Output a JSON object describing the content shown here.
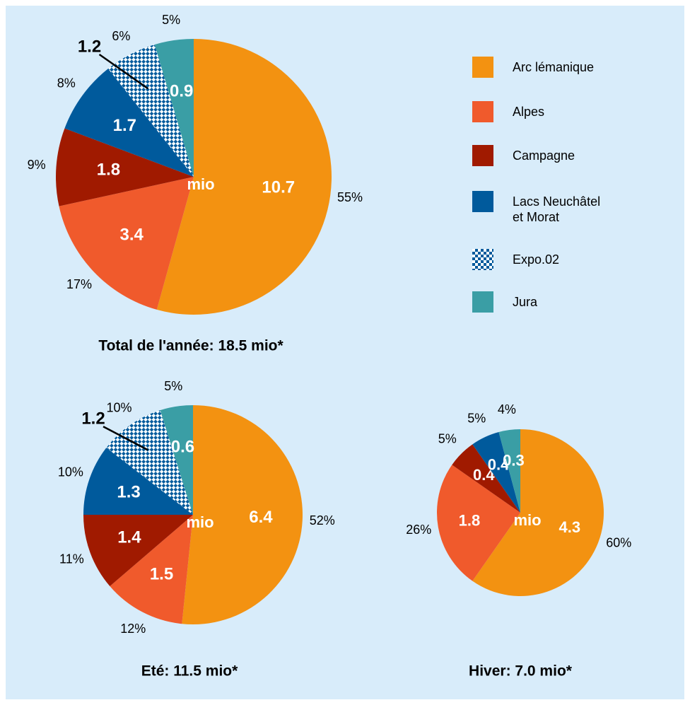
{
  "chart_data": [
    {
      "type": "pie",
      "title": "Total de l'année: 18.5 mio*",
      "center_label": "mio",
      "categories": [
        "Arc lémanique",
        "Alpes",
        "Campagne",
        "Lacs Neuchâtel\net Morat",
        "Expo.02",
        "Jura"
      ],
      "values": [
        10.7,
        3.4,
        1.8,
        1.7,
        1.2,
        0.9
      ],
      "percent_labels": [
        "55%",
        "17%",
        "9%",
        "8%",
        "6%",
        "5%"
      ],
      "colors": [
        "#f39211",
        "#f05a2c",
        "#a01a00",
        "#005a9c",
        "#005a9c",
        "#3a9ea5"
      ],
      "patterned": [
        false,
        false,
        false,
        false,
        true,
        false
      ]
    },
    {
      "type": "pie",
      "title": "Eté: 11.5 mio*",
      "center_label": "mio",
      "categories": [
        "Arc lémanique",
        "Alpes",
        "Campagne",
        "Lacs Neuchâtel\net Morat",
        "Expo.02",
        "Jura"
      ],
      "values": [
        6.4,
        1.5,
        1.4,
        1.3,
        1.2,
        0.6
      ],
      "percent_labels": [
        "52%",
        "12%",
        "11%",
        "10%",
        "10%",
        "5%"
      ],
      "colors": [
        "#f39211",
        "#f05a2c",
        "#a01a00",
        "#005a9c",
        "#005a9c",
        "#3a9ea5"
      ],
      "patterned": [
        false,
        false,
        false,
        false,
        true,
        false
      ]
    },
    {
      "type": "pie",
      "title": "Hiver: 7.0 mio*",
      "center_label": "mio",
      "categories": [
        "Arc lémanique",
        "Alpes",
        "Campagne",
        "Lacs Neuchâtel\net Morat",
        "Jura"
      ],
      "values": [
        4.3,
        1.8,
        0.4,
        0.4,
        0.3
      ],
      "percent_labels": [
        "60%",
        "26%",
        "5%",
        "5%",
        "4%"
      ],
      "colors": [
        "#f39211",
        "#f05a2c",
        "#a01a00",
        "#005a9c",
        "#3a9ea5"
      ],
      "patterned": [
        false,
        false,
        false,
        false,
        false
      ]
    }
  ]
}
